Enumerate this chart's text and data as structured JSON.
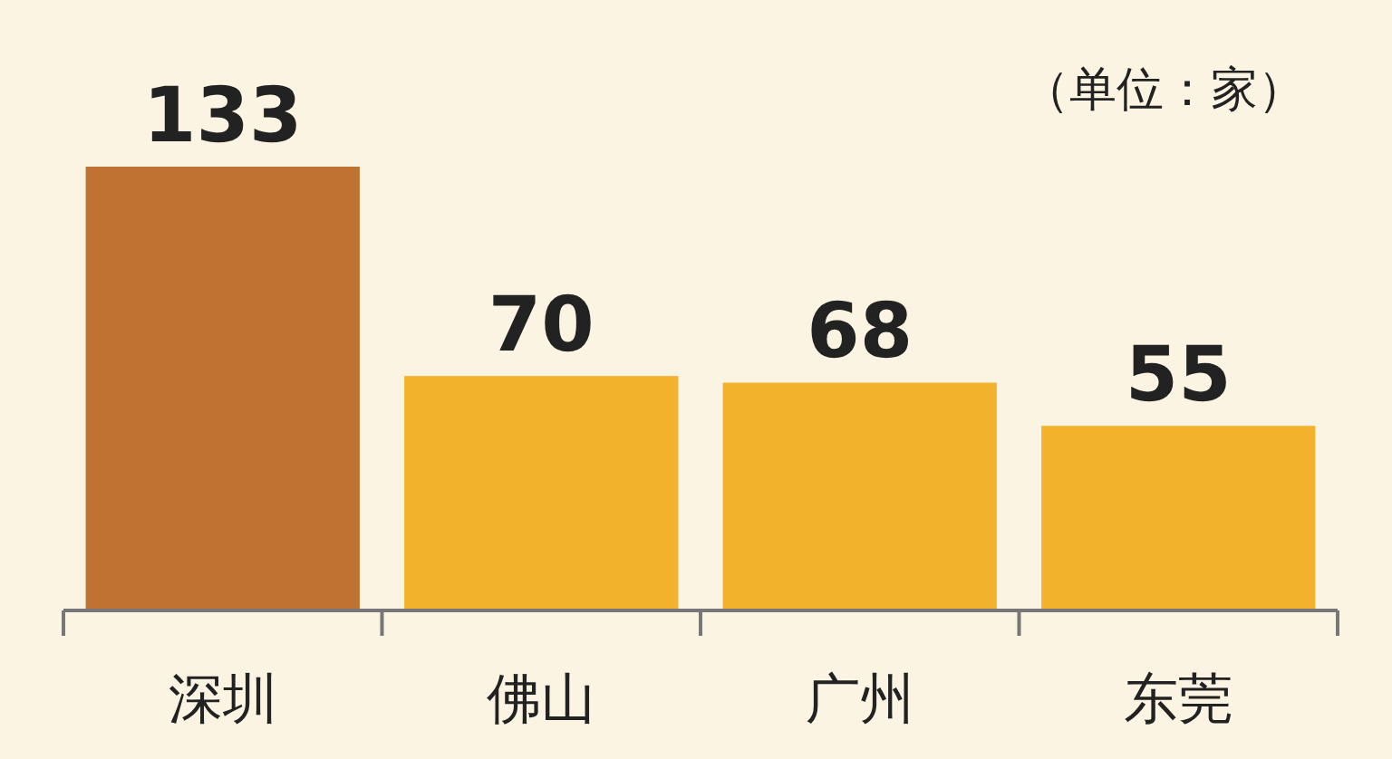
{
  "chart_data": {
    "type": "bar",
    "categories": [
      "深圳",
      "佛山",
      "广州",
      "东莞"
    ],
    "values": [
      133,
      70,
      68,
      55
    ],
    "colors": [
      "#c07232",
      "#f3b22b",
      "#f3b22b",
      "#f3b22b"
    ],
    "data_labels": true,
    "annotations": [
      "（单位：家）"
    ]
  }
}
